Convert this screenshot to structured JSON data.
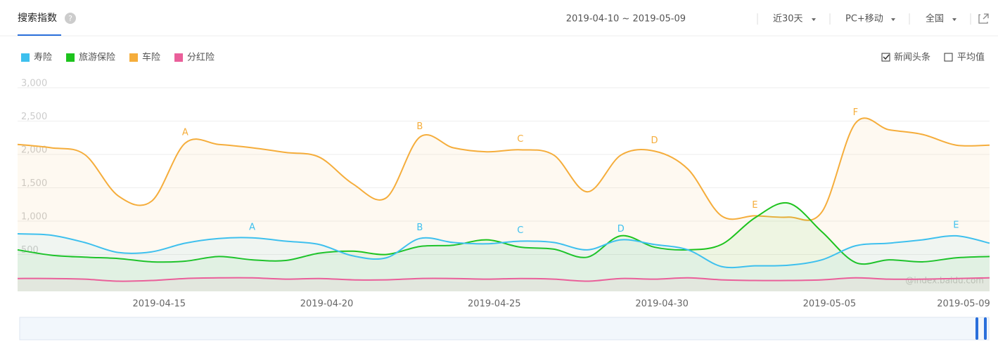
{
  "header": {
    "tab": "搜索指数",
    "help": "?",
    "date_range": "2019-04-10 ~ 2019-05-09",
    "period": "近30天",
    "device": "PC+移动",
    "region": "全国"
  },
  "options": {
    "news": "新闻头条",
    "average": "平均值"
  },
  "watermark": "@index.baidu.com",
  "chart_data": {
    "type": "line",
    "area": true,
    "grid": true,
    "categories": [
      null,
      null,
      null,
      null,
      null,
      "2019-04-15",
      null,
      null,
      null,
      null,
      "2019-04-20",
      null,
      null,
      null,
      null,
      "2019-04-25",
      null,
      null,
      null,
      null,
      "2019-04-30",
      null,
      null,
      null,
      null,
      "2019-05-05",
      null,
      null,
      null,
      "2019-05-09"
    ],
    "ylim": [
      0,
      3000
    ],
    "yticks": [
      500,
      {
        "value": 1000,
        "label": "1,000"
      },
      {
        "value": 1500,
        "label": "1,500"
      },
      {
        "value": 2000,
        "label": "2,000"
      },
      {
        "value": 2500,
        "label": "2,500"
      },
      {
        "value": 3000,
        "label": "3,000"
      }
    ],
    "series": [
      {
        "name": "寿险",
        "color": "#3ec0ee",
        "values": [
          810,
          790,
          680,
          530,
          540,
          670,
          740,
          750,
          700,
          650,
          480,
          450,
          740,
          680,
          660,
          700,
          680,
          570,
          720,
          650,
          570,
          320,
          330,
          340,
          420,
          630,
          670,
          720,
          780,
          670
        ]
      },
      {
        "name": "旅游保险",
        "color": "#1dc31d",
        "values": [
          570,
          490,
          460,
          440,
          390,
          400,
          470,
          420,
          410,
          520,
          550,
          500,
          620,
          640,
          720,
          610,
          580,
          460,
          780,
          610,
          570,
          650,
          1050,
          1270,
          840,
          380,
          420,
          390,
          450,
          470
        ]
      },
      {
        "name": "车险",
        "color": "#f5ad3b",
        "values": [
          2150,
          2100,
          2000,
          1380,
          1300,
          2170,
          2150,
          2100,
          2030,
          1960,
          1560,
          1350,
          2260,
          2100,
          2040,
          2070,
          1990,
          1440,
          1990,
          2050,
          1780,
          1080,
          1080,
          1060,
          1140,
          2470,
          2370,
          2300,
          2140,
          2140
        ]
      },
      {
        "name": "分红险",
        "color": "#ea5f9a",
        "values": [
          140,
          140,
          130,
          100,
          110,
          140,
          150,
          150,
          130,
          140,
          120,
          120,
          140,
          140,
          130,
          140,
          130,
          100,
          140,
          130,
          150,
          120,
          110,
          110,
          120,
          150,
          130,
          130,
          140,
          150
        ]
      }
    ],
    "annotations": [
      {
        "series": 2,
        "index": 5,
        "label": "A"
      },
      {
        "series": 2,
        "index": 12,
        "label": "B"
      },
      {
        "series": 2,
        "index": 15,
        "label": "C"
      },
      {
        "series": 2,
        "index": 19,
        "label": "D"
      },
      {
        "series": 2,
        "index": 22,
        "label": "E"
      },
      {
        "series": 2,
        "index": 25,
        "label": "F"
      },
      {
        "series": 0,
        "index": 7,
        "label": "A"
      },
      {
        "series": 0,
        "index": 12,
        "label": "B"
      },
      {
        "series": 0,
        "index": 15,
        "label": "C"
      },
      {
        "series": 0,
        "index": 18,
        "label": "D"
      },
      {
        "series": 0,
        "index": 28,
        "label": "E"
      }
    ]
  }
}
